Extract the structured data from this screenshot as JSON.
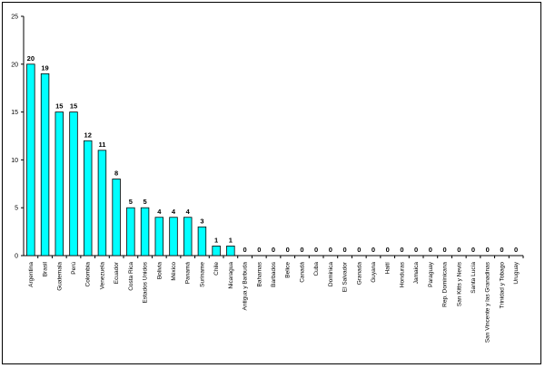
{
  "chart_data": {
    "type": "bar",
    "title": "",
    "xlabel": "",
    "ylabel": "",
    "ylim": [
      0,
      25
    ],
    "yticks": [
      0,
      5,
      10,
      15,
      20,
      25
    ],
    "grid": false,
    "legend": "none",
    "bar_color": "#00FFFF",
    "bar_edge_color": "#000000",
    "categories": [
      "Argentina",
      "Brasil",
      "Guatemala",
      "Perú",
      "Colombia",
      "Venezuela",
      "Ecuador",
      "Costa Rica",
      "Estados Unidos",
      "Bolivia",
      "México",
      "Panamá",
      "Suriname",
      "Chile",
      "Nicaragua",
      "Antigua y Barbuda",
      "Bahamas",
      "Barbados",
      "Belice",
      "Canadá",
      "Cuba",
      "Dominica",
      "El Salvador",
      "Granada",
      "Guyana",
      "Haití",
      "Honduras",
      "Jamaica",
      "Paraguay",
      "Rep. Dominicana",
      "San Kitts y Nevis",
      "Santa Lucía",
      "San Vincente y las Granadinas",
      "Trinidad y Tobago",
      "Uruguay"
    ],
    "values": [
      20,
      19,
      15,
      15,
      12,
      11,
      8,
      5,
      5,
      4,
      4,
      4,
      3,
      1,
      1,
      0,
      0,
      0,
      0,
      0,
      0,
      0,
      0,
      0,
      0,
      0,
      0,
      0,
      0,
      0,
      0,
      0,
      0,
      0,
      0
    ]
  }
}
